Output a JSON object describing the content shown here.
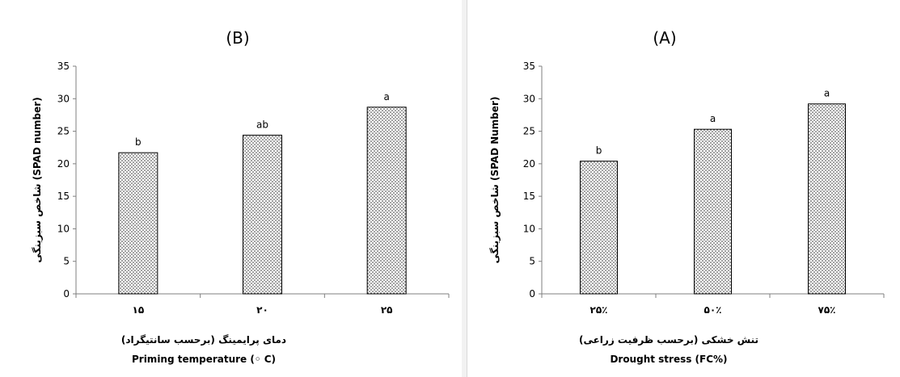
{
  "chart_data": [
    {
      "panel": "B",
      "type": "bar",
      "title": "(B)",
      "categories": [
        "۱۵",
        "۲۰",
        "۲۵"
      ],
      "values": [
        21.7,
        24.4,
        28.7
      ],
      "letters": [
        "b",
        "ab",
        "a"
      ],
      "xlabel_fa": "دمای پرایمینگ (برحسب سانتیگراد)",
      "xlabel_en": "Priming temperature (◦ C)",
      "ylabel": "شاخص سبزینگی (SPAD number)",
      "ylim": [
        0,
        35
      ],
      "yticks": [
        0,
        5,
        10,
        15,
        20,
        25,
        30,
        35
      ],
      "legend": "none",
      "grid": false,
      "bar_pattern": "dotted"
    },
    {
      "panel": "A",
      "type": "bar",
      "title": "(A)",
      "categories": [
        "۲۵٪",
        "۵۰٪",
        "۷۵٪"
      ],
      "values": [
        20.4,
        25.3,
        29.2
      ],
      "letters": [
        "b",
        "a",
        "a"
      ],
      "xlabel_fa": "تنش خشکی (برحسب ظرفیت زراعی)",
      "xlabel_en": "Drought stress (FC%)",
      "ylabel": "شاخص سبزینگی (SPAD Number)",
      "ylim": [
        0,
        35
      ],
      "yticks": [
        0,
        5,
        10,
        15,
        20,
        25,
        30,
        35
      ],
      "legend": "none",
      "grid": false,
      "bar_pattern": "dotted"
    }
  ],
  "colors": {
    "axis": "#7f7f7f",
    "bar_border": "#000000",
    "dots": "#333333",
    "background": "#ffffff"
  }
}
